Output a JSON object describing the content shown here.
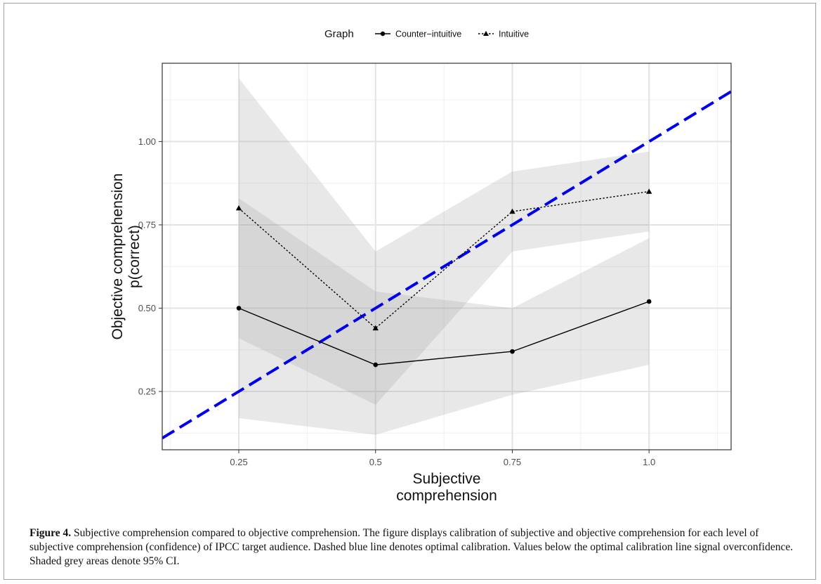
{
  "chart_data": {
    "type": "line",
    "xlabel": [
      "Subjective",
      "comprehension"
    ],
    "ylabel": [
      "Objective comprehension",
      "p(correct)"
    ],
    "xlim": [
      0.11,
      1.15
    ],
    "ylim": [
      0.075,
      1.235
    ],
    "x_ticks": [
      0.25,
      0.5,
      0.75,
      1.0
    ],
    "x_tick_labels": [
      "0.25",
      "0.5",
      "0.75",
      "1.0"
    ],
    "y_ticks": [
      0.25,
      0.5,
      0.75,
      1.0
    ],
    "y_tick_labels": [
      "0.25",
      "0.50",
      "0.75",
      "1.00"
    ],
    "grid": true,
    "legend": {
      "title": "Graph",
      "position": "top",
      "entries": [
        "Counter−intuitive",
        "Intuitive"
      ]
    },
    "x": [
      0.25,
      0.5,
      0.75,
      1.0
    ],
    "series": [
      {
        "name": "Counter−intuitive",
        "values": [
          0.5,
          0.33,
          0.37,
          0.52
        ],
        "ci_lower": [
          0.17,
          0.12,
          0.24,
          0.33
        ],
        "ci_upper": [
          0.83,
          0.55,
          0.5,
          0.71
        ],
        "marker": "circle",
        "line_style": "solid"
      },
      {
        "name": "Intuitive",
        "values": [
          0.8,
          0.44,
          0.79,
          0.85
        ],
        "ci_lower": [
          0.41,
          0.21,
          0.67,
          0.73
        ],
        "ci_upper": [
          1.19,
          0.67,
          0.91,
          0.97
        ],
        "marker": "triangle",
        "line_style": "dotted"
      }
    ],
    "reference_line": {
      "slope": 1,
      "intercept": 0,
      "color": "#0000ee",
      "style": "dashed"
    }
  },
  "caption": {
    "label": "Figure 4.",
    "text": " Subjective comprehension compared to objective comprehension. The figure displays calibration of subjective and objective comprehension for each level of subjective comprehension (confidence) of IPCC target audience. Dashed blue line denotes optimal calibration. Values below the optimal calibration line signal overconfidence. Shaded grey areas denote 95% CI."
  }
}
